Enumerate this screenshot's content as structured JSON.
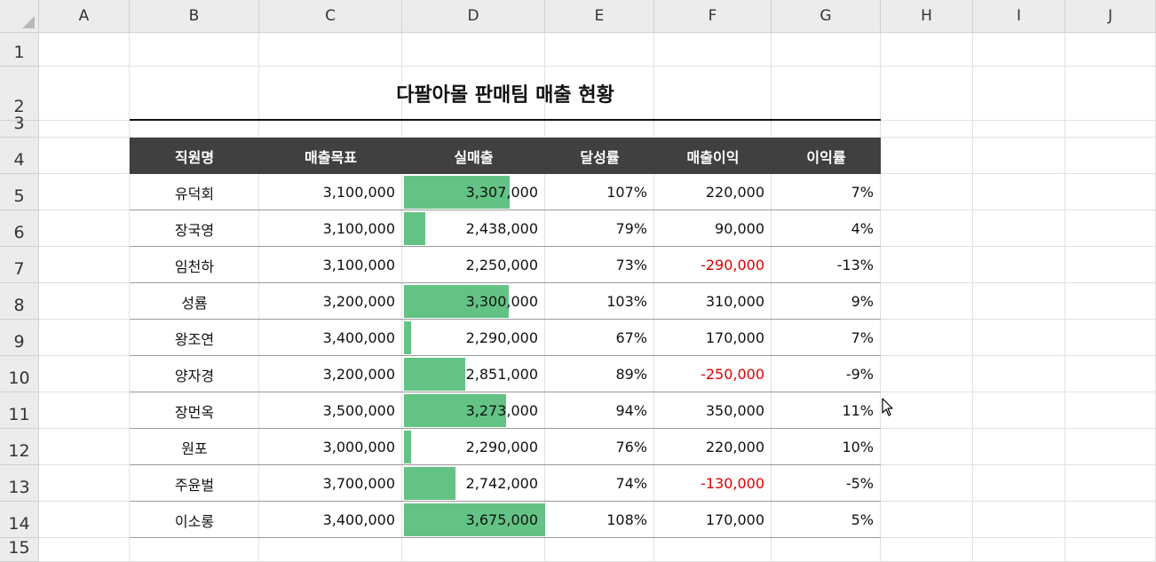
{
  "columns": [
    "A",
    "B",
    "C",
    "D",
    "E",
    "F",
    "G",
    "H",
    "I",
    "J"
  ],
  "rows": [
    "1",
    "2",
    "3",
    "4",
    "5",
    "6",
    "7",
    "8",
    "9",
    "10",
    "11",
    "12",
    "13",
    "14",
    "15"
  ],
  "title": "다팔아몰 판매팀 매출 현황",
  "headers": [
    "직원명",
    "매출목표",
    "실매출",
    "달성률",
    "매출이익",
    "이익률"
  ],
  "records": [
    {
      "name": "유덕회",
      "target": "3,100,000",
      "actual": "3,307,000",
      "achieve": "107%",
      "profit": "220,000",
      "margin": "7%",
      "negative": false,
      "actual_value": 3307000
    },
    {
      "name": "장국영",
      "target": "3,100,000",
      "actual": "2,438,000",
      "achieve": "79%",
      "profit": "90,000",
      "margin": "4%",
      "negative": false,
      "actual_value": 2438000
    },
    {
      "name": "임천하",
      "target": "3,100,000",
      "actual": "2,250,000",
      "achieve": "73%",
      "profit": "-290,000",
      "margin": "-13%",
      "negative": true,
      "actual_value": 2250000
    },
    {
      "name": "성룜",
      "target": "3,200,000",
      "actual": "3,300,000",
      "achieve": "103%",
      "profit": "310,000",
      "margin": "9%",
      "negative": false,
      "actual_value": 3300000
    },
    {
      "name": "왕조연",
      "target": "3,400,000",
      "actual": "2,290,000",
      "achieve": "67%",
      "profit": "170,000",
      "margin": "7%",
      "negative": false,
      "actual_value": 2290000
    },
    {
      "name": "양자경",
      "target": "3,200,000",
      "actual": "2,851,000",
      "achieve": "89%",
      "profit": "-250,000",
      "margin": "-9%",
      "negative": true,
      "actual_value": 2851000
    },
    {
      "name": "장먼옥",
      "target": "3,500,000",
      "actual": "3,273,000",
      "achieve": "94%",
      "profit": "350,000",
      "margin": "11%",
      "negative": false,
      "actual_value": 3273000
    },
    {
      "name": "원포",
      "target": "3,000,000",
      "actual": "2,290,000",
      "achieve": "76%",
      "profit": "220,000",
      "margin": "10%",
      "negative": false,
      "actual_value": 2290000
    },
    {
      "name": "주윤벌",
      "target": "3,700,000",
      "actual": "2,742,000",
      "achieve": "74%",
      "profit": "-130,000",
      "margin": "-5%",
      "negative": true,
      "actual_value": 2742000
    },
    {
      "name": "이소롱",
      "target": "3,400,000",
      "actual": "3,675,000",
      "achieve": "108%",
      "profit": "170,000",
      "margin": "5%",
      "negative": false,
      "actual_value": 3675000
    }
  ],
  "databar": {
    "color": "#63c384",
    "min": 2250000,
    "max": 3675000
  },
  "colors": {
    "header_band": "#404040",
    "negative": "#e00000"
  }
}
